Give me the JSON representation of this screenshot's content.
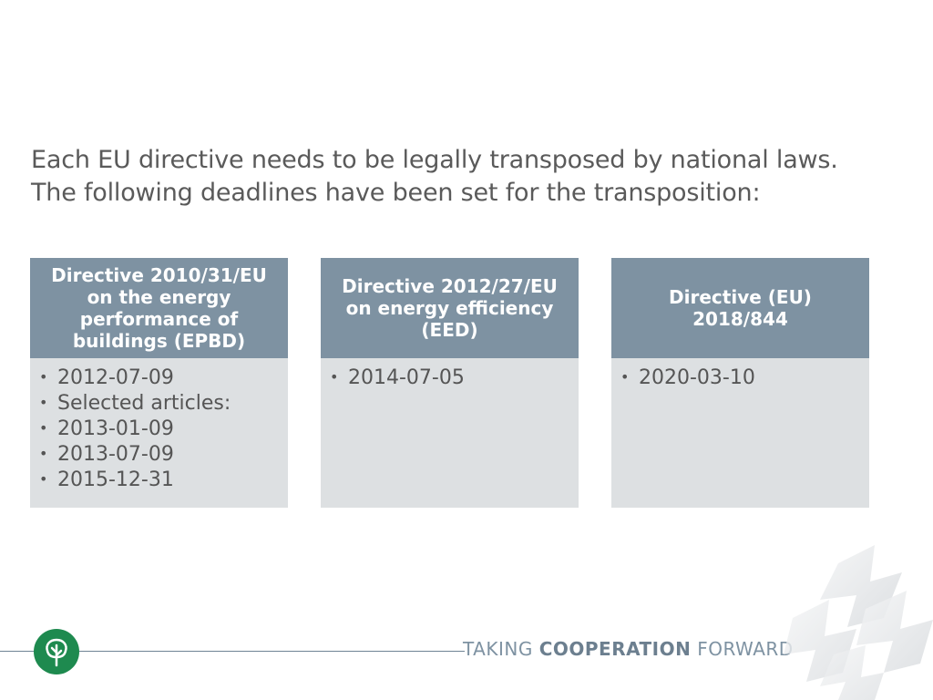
{
  "intro": {
    "line1": "Each EU directive needs to be legally transposed by national laws.",
    "line2": "The following deadlines have been set for the transposition:"
  },
  "cards": [
    {
      "title": "Directive 2010/31/EU on the energy performance of buildings (EPBD)",
      "items": [
        "2012-07-09",
        "Selected articles:",
        "2013-01-09",
        "2013-07-09",
        "2015-12-31"
      ]
    },
    {
      "title": "Directive 2012/27/EU on energy efficiency (EED)",
      "items": [
        "2014-07-05"
      ]
    },
    {
      "title": "Directive (EU) 2018/844",
      "items": [
        "2020-03-10"
      ]
    }
  ],
  "footer": {
    "slogan_pre": "TAKING ",
    "slogan_bold": "COOPERATION",
    "slogan_post": " FORWARD",
    "logo_icon": "tree-icon"
  },
  "colors": {
    "card_header": "#7e92a2",
    "card_body": "#dde0e2",
    "logo_green": "#1e8a4f"
  }
}
